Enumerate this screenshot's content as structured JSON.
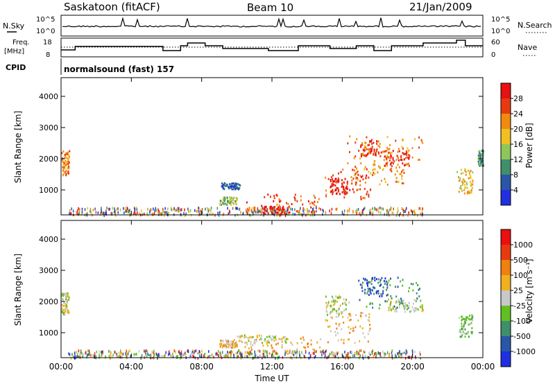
{
  "header": {
    "station": "Saskatoon (fitACF)",
    "beam": "Beam 10",
    "date": "21/Jan/2009"
  },
  "noise_panel": {
    "left_label": "N.Sky",
    "left_ticks": [
      "10^5",
      "10^0"
    ],
    "right_ticks": [
      "10^5",
      "10^0"
    ],
    "right_label": "N.Search"
  },
  "freq_panel": {
    "left_label_line1": "Freq.",
    "left_label_line2": "[MHz]",
    "left_ticks": [
      "18",
      "8"
    ],
    "right_ticks": [
      "60",
      "0"
    ],
    "right_label": "Nave"
  },
  "cpid_panel": {
    "label": "CPID",
    "program": "normalsound (fast) 157"
  },
  "chart_data": [
    {
      "type": "heatmap",
      "name": "power",
      "ylabel": "Slant Range [km]",
      "yticks": [
        "1000",
        "2000",
        "3000",
        "4000"
      ],
      "ylim": [
        200,
        4600
      ],
      "xlim": [
        0,
        24
      ],
      "colorbar": {
        "label": "Power [dB]",
        "ticks": [
          "4",
          "8",
          "12",
          "16",
          "20",
          "24",
          "28"
        ],
        "colors": [
          "#2030e0",
          "#2a56a8",
          "#3f8f6a",
          "#8fc65a",
          "#f0c020",
          "#f08a10",
          "#e83a10",
          "#e81010"
        ]
      },
      "blobs": [
        {
          "t0": 0.0,
          "t1": 0.45,
          "r0": 1500,
          "r1": 2300,
          "level": 5
        },
        {
          "t0": 9.1,
          "t1": 10.2,
          "r0": 1050,
          "r1": 1250,
          "level": 1
        },
        {
          "t0": 9.0,
          "t1": 10.0,
          "r0": 550,
          "r1": 800,
          "level": 3
        },
        {
          "t0": 10.5,
          "t1": 14.8,
          "r0": 300,
          "r1": 900,
          "level": 6
        },
        {
          "t0": 11.5,
          "t1": 13.0,
          "r0": 250,
          "r1": 500,
          "level": 7
        },
        {
          "t0": 15.0,
          "t1": 17.6,
          "r0": 700,
          "r1": 1700,
          "level": 6
        },
        {
          "t0": 15.3,
          "t1": 16.3,
          "r0": 900,
          "r1": 1400,
          "level": 7
        },
        {
          "t0": 16.2,
          "t1": 20.6,
          "r0": 1800,
          "r1": 2800,
          "level": 5
        },
        {
          "t0": 17.0,
          "t1": 18.2,
          "r0": 2100,
          "r1": 2600,
          "level": 6
        },
        {
          "t0": 16.5,
          "t1": 19.5,
          "r0": 1200,
          "r1": 1800,
          "level": 5
        },
        {
          "t0": 18.3,
          "t1": 19.8,
          "r0": 1800,
          "r1": 2300,
          "level": 6
        },
        {
          "t0": 22.5,
          "t1": 23.4,
          "r0": 900,
          "r1": 1700,
          "level": 4
        },
        {
          "t0": 23.7,
          "t1": 24.0,
          "r0": 1800,
          "r1": 2300,
          "level": 2
        }
      ]
    },
    {
      "type": "heatmap",
      "name": "velocity",
      "ylabel": "Slant Range [km]",
      "yticks": [
        "1000",
        "2000",
        "3000",
        "4000"
      ],
      "ylim": [
        200,
        4600
      ],
      "xlim": [
        0,
        24
      ],
      "colorbar": {
        "label": "Velocity [m s⁻¹]",
        "ticks": [
          "1000",
          "500",
          "100",
          "25",
          "-25",
          "-100",
          "-500",
          "-1000"
        ],
        "colors": [
          "#2030e0",
          "#2a56a8",
          "#3f8f6a",
          "#60c020",
          "#c8c8c8",
          "#f0b020",
          "#f08010",
          "#e83a10",
          "#e81010"
        ]
      },
      "blobs": [
        {
          "t0": 0.0,
          "t1": 0.45,
          "r0": 1600,
          "r1": 2300,
          "level": 4
        },
        {
          "t0": 9.0,
          "t1": 10.0,
          "r0": 550,
          "r1": 800,
          "level": 5
        },
        {
          "t0": 10.4,
          "t1": 14.8,
          "r0": 300,
          "r1": 900,
          "level": 5
        },
        {
          "t0": 10.0,
          "t1": 13.0,
          "r0": 700,
          "r1": 950,
          "level": 4
        },
        {
          "t0": 15.0,
          "t1": 17.6,
          "r0": 700,
          "r1": 1700,
          "level": 5
        },
        {
          "t0": 15.0,
          "t1": 16.5,
          "r0": 1500,
          "r1": 2200,
          "level": 4
        },
        {
          "t0": 16.8,
          "t1": 20.6,
          "r0": 1800,
          "r1": 2800,
          "level": 2
        },
        {
          "t0": 17.0,
          "t1": 18.5,
          "r0": 2200,
          "r1": 2800,
          "level": 1
        },
        {
          "t0": 18.5,
          "t1": 20.6,
          "r0": 1700,
          "r1": 2100,
          "level": 4
        },
        {
          "t0": 22.6,
          "t1": 23.4,
          "r0": 900,
          "r1": 1600,
          "level": 3
        },
        {
          "t0": 0.5,
          "t1": 20.6,
          "r0": 200,
          "r1": 420,
          "level": 3
        }
      ]
    }
  ],
  "x_axis": {
    "label": "Time UT",
    "ticks": [
      "00:00",
      "04:00",
      "08:00",
      "12:00",
      "16:00",
      "20:00",
      "00:00"
    ]
  }
}
